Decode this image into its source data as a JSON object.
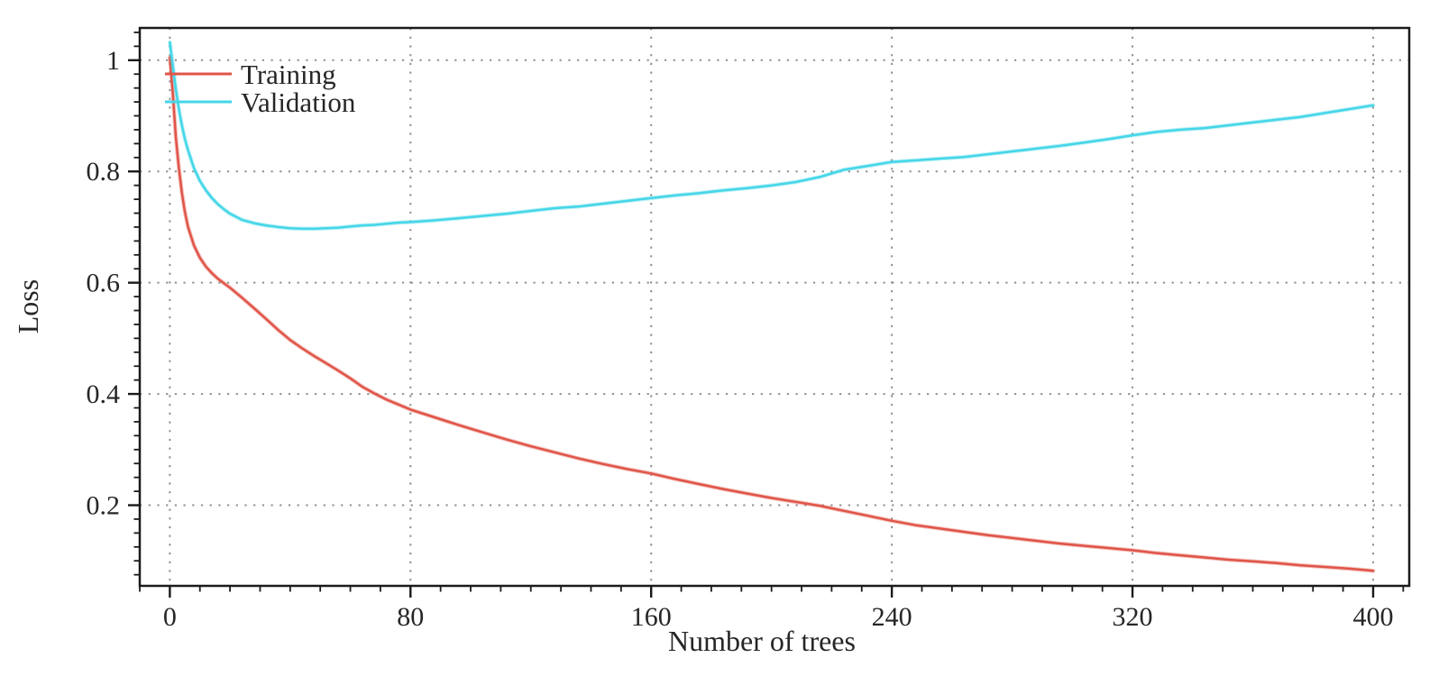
{
  "chart_data": {
    "type": "line",
    "title": "",
    "xlabel": "Number of trees",
    "ylabel": "Loss",
    "xlim": [
      -10,
      412
    ],
    "ylim": [
      0.055,
      1.058
    ],
    "x_major_ticks": [
      0,
      80,
      160,
      240,
      320,
      400
    ],
    "x_major_tick_labels": [
      "0",
      "80",
      "160",
      "240",
      "320",
      "400"
    ],
    "x_minor_tick_step": 10,
    "y_major_ticks": [
      0.2,
      0.4,
      0.6,
      0.8,
      1.0
    ],
    "y_major_tick_labels": [
      "0.2",
      "0.4",
      "0.6",
      "0.8",
      "1"
    ],
    "y_minor_tick_step": 0.025,
    "grid": "dotted-at-major-ticks",
    "grid_color": "#8f8f8f",
    "axis_color": "#1a1a1a",
    "legend_position": "top-left-inside",
    "x": [
      0,
      1,
      2,
      3,
      4,
      5,
      6,
      8,
      10,
      12,
      14,
      16,
      18,
      20,
      24,
      28,
      32,
      36,
      40,
      44,
      48,
      52,
      56,
      60,
      64,
      68,
      72,
      76,
      80,
      88,
      96,
      104,
      112,
      120,
      128,
      136,
      144,
      152,
      160,
      168,
      176,
      184,
      192,
      200,
      208,
      216,
      224,
      232,
      240,
      248,
      256,
      264,
      272,
      280,
      288,
      296,
      304,
      312,
      320,
      328,
      336,
      344,
      352,
      360,
      368,
      376,
      384,
      392,
      400
    ],
    "series": [
      {
        "name": "Training",
        "color": "#e05549",
        "values": [
          1.005,
          0.94,
          0.862,
          0.806,
          0.762,
          0.728,
          0.701,
          0.667,
          0.645,
          0.629,
          0.617,
          0.607,
          0.599,
          0.591,
          0.573,
          0.554,
          0.535,
          0.515,
          0.497,
          0.482,
          0.468,
          0.455,
          0.442,
          0.428,
          0.413,
          0.401,
          0.39,
          0.381,
          0.372,
          0.358,
          0.344,
          0.331,
          0.318,
          0.306,
          0.295,
          0.284,
          0.274,
          0.265,
          0.257,
          0.247,
          0.238,
          0.229,
          0.221,
          0.213,
          0.206,
          0.199,
          0.19,
          0.181,
          0.172,
          0.164,
          0.158,
          0.152,
          0.146,
          0.141,
          0.136,
          0.131,
          0.127,
          0.123,
          0.119,
          0.114,
          0.11,
          0.106,
          0.102,
          0.099,
          0.096,
          0.092,
          0.089,
          0.086,
          0.082
        ]
      },
      {
        "name": "Validation",
        "color": "#45d6e8",
        "values": [
          1.032,
          0.99,
          0.948,
          0.912,
          0.883,
          0.859,
          0.839,
          0.806,
          0.783,
          0.766,
          0.752,
          0.741,
          0.732,
          0.724,
          0.713,
          0.707,
          0.703,
          0.7,
          0.698,
          0.697,
          0.697,
          0.698,
          0.699,
          0.701,
          0.703,
          0.704,
          0.706,
          0.708,
          0.709,
          0.712,
          0.716,
          0.72,
          0.724,
          0.729,
          0.734,
          0.737,
          0.742,
          0.747,
          0.752,
          0.757,
          0.761,
          0.766,
          0.77,
          0.775,
          0.781,
          0.79,
          0.803,
          0.81,
          0.817,
          0.82,
          0.823,
          0.826,
          0.831,
          0.836,
          0.841,
          0.846,
          0.852,
          0.858,
          0.865,
          0.871,
          0.875,
          0.878,
          0.883,
          0.888,
          0.893,
          0.898,
          0.905,
          0.912,
          0.919
        ]
      }
    ]
  }
}
